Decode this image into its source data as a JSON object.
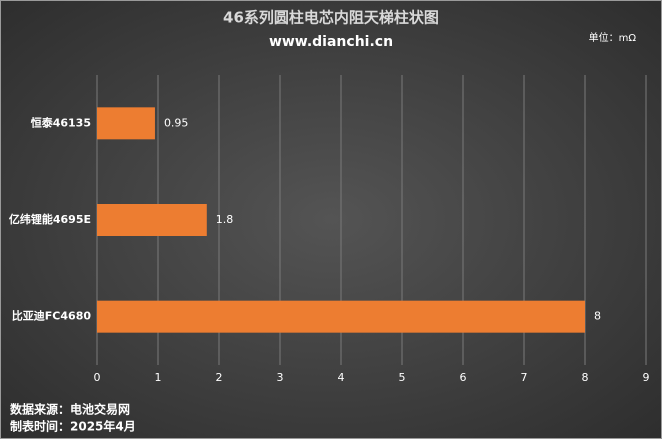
{
  "chart_data": {
    "type": "barh",
    "title": "46系列圆柱电芯内阻天梯柱状图",
    "subtitle": "www.dianchi.cn",
    "unit": "单位：mΩ",
    "categories": [
      "恒泰46135",
      "亿纬锂能4695E",
      "比亚迪FC4680"
    ],
    "values": [
      0.95,
      1.8,
      8
    ],
    "color": "#ed7d31",
    "xlim": [
      0,
      9
    ],
    "xticks": [
      0,
      1,
      2,
      3,
      4,
      5,
      6,
      7,
      8,
      9
    ],
    "grid": true,
    "notes": [
      "数据来源：电池交易网",
      "制表时间：2025年4月"
    ]
  }
}
